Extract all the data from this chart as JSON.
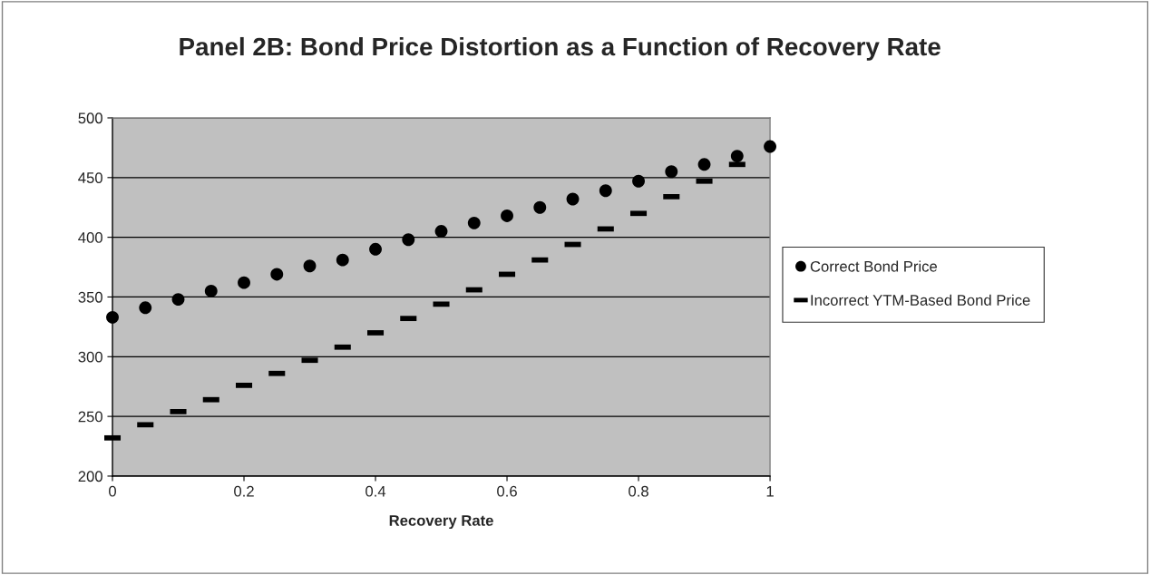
{
  "chart_data": {
    "type": "scatter",
    "title": "Panel 2B: Bond Price Distortion as a Function of Recovery Rate",
    "xlabel": "Recovery Rate",
    "x": [
      0,
      0.05,
      0.1,
      0.15,
      0.2,
      0.25,
      0.3,
      0.35,
      0.4,
      0.45,
      0.5,
      0.55,
      0.6,
      0.65,
      0.7,
      0.75,
      0.8,
      0.85,
      0.9,
      0.95,
      1
    ],
    "series": [
      {
        "name": "Correct Bond Price",
        "color": "#000000",
        "marker": "circle",
        "values": [
          333,
          341,
          348,
          355,
          362,
          369,
          376,
          381,
          390,
          398,
          405,
          412,
          418,
          425,
          432,
          439,
          447,
          455,
          461,
          468,
          476
        ]
      },
      {
        "name": "Incorrect YTM-Based Bond Price",
        "color": "#000000",
        "marker": "square",
        "values": [
          232,
          243,
          254,
          264,
          276,
          286,
          297,
          308,
          320,
          332,
          344,
          356,
          369,
          381,
          394,
          407,
          420,
          434,
          447,
          461,
          null
        ]
      }
    ],
    "xlim": [
      0,
      1
    ],
    "xticks": [
      0,
      {
        "value": 0.2,
        "label": "0.2"
      },
      {
        "value": 0.4,
        "label": "0.4"
      },
      {
        "value": 0.6,
        "label": "0.6"
      },
      {
        "value": 0.8,
        "label": "0.8"
      },
      1
    ],
    "ylim": [
      200,
      500
    ],
    "yticks": [
      200,
      250,
      300,
      350,
      400,
      450,
      500
    ],
    "grid": "y",
    "legend": "right"
  }
}
